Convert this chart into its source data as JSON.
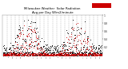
{
  "title": "Milwaukee Weather  Solar Radiation",
  "subtitle": "Avg per Day W/m2/minute",
  "background_color": "#ffffff",
  "plot_bg_color": "#ffffff",
  "grid_color": "#888888",
  "ylim": [
    0,
    1.0
  ],
  "ytick_vals": [
    0.2,
    0.4,
    0.6,
    0.8,
    1.0
  ],
  "ytick_labels": [
    "0.2",
    "0.4",
    "0.6",
    "0.8",
    "1"
  ],
  "red_color": "#cc0000",
  "black_color": "#000000",
  "n_points": 730,
  "seed": 12
}
